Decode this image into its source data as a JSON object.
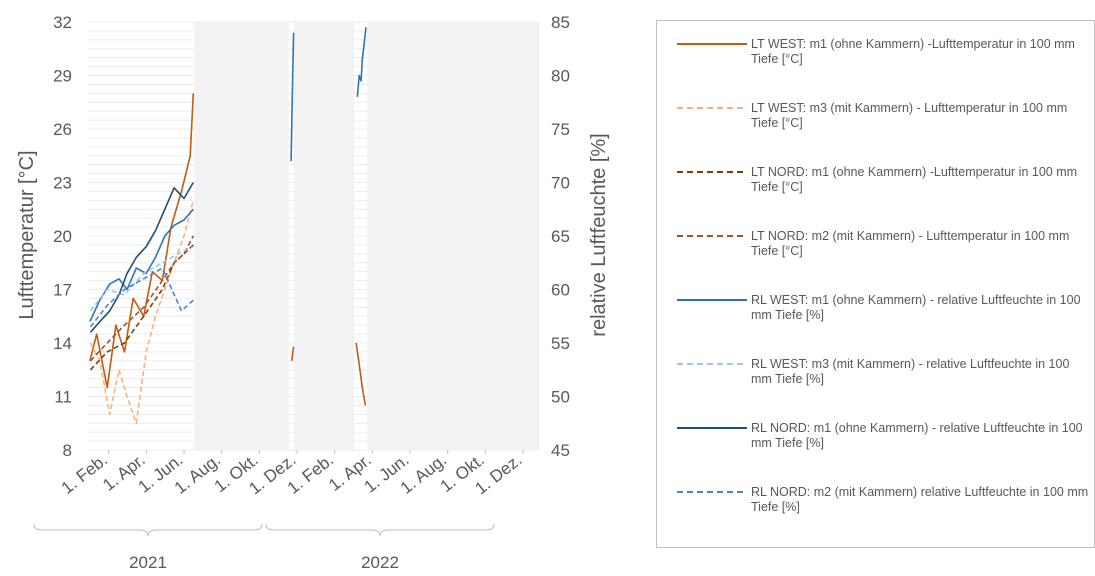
{
  "chart_data": {
    "type": "line",
    "y_left": {
      "label": "Lufttemperatur [°C]",
      "range": [
        8,
        32
      ],
      "ticks": [
        "32",
        "29",
        "26",
        "23",
        "20",
        "17",
        "14",
        "11",
        "8"
      ]
    },
    "y_right": {
      "label": "relative Luftfeuchte [%]",
      "range": [
        45,
        85
      ],
      "ticks": [
        "85",
        "80",
        "75",
        "70",
        "65",
        "60",
        "55",
        "50",
        "45"
      ]
    },
    "x_ticks": [
      "1. Feb.",
      "1. Apr.",
      "1. Jun.",
      "1. Aug.",
      "1. Okt.",
      "1. Dez.",
      "1. Feb.",
      "1. Apr.",
      "1. Jun.",
      "1. Aug.",
      "1. Okt.",
      "1. Dez."
    ],
    "years": [
      "2021",
      "2022"
    ],
    "grid": true,
    "series": [
      {
        "name": "LT WEST: m1 (ohne Kammern) -Lufttemperatur in 100 mm Tiefe [°C]",
        "axis": "left",
        "color": "#c55a11",
        "dash": "solid",
        "segments": [
          {
            "x": [
              "2021-01-04",
              "2021-01-15",
              "2021-02-01",
              "2021-02-15",
              "2021-03-01",
              "2021-03-15",
              "2021-04-01",
              "2021-04-15",
              "2021-05-01",
              "2021-05-15",
              "2021-06-01",
              "2021-06-15",
              "2021-06-20"
            ],
            "y": [
              13.0,
              14.5,
              11.5,
              15.0,
              13.5,
              16.5,
              15.5,
              18.0,
              17.5,
              20.5,
              22.5,
              24.5,
              28.0
            ]
          },
          {
            "x": [
              "2021-11-26",
              "2021-11-29"
            ],
            "y": [
              13.0,
              13.8
            ]
          },
          {
            "x": [
              "2022-03-10",
              "2022-03-15",
              "2022-03-20",
              "2022-03-25"
            ],
            "y": [
              14.0,
              12.8,
              11.5,
              10.5
            ]
          }
        ]
      },
      {
        "name": "LT WEST: m3 (mit Kammern) - Lufttemperatur in 100 mm Tiefe [°C]",
        "axis": "left",
        "color": "#f4b183",
        "dash": "dashed",
        "segments": [
          {
            "x": [
              "2021-01-05",
              "2021-01-20",
              "2021-02-05",
              "2021-02-20",
              "2021-03-05",
              "2021-03-20",
              "2021-04-05",
              "2021-04-20",
              "2021-05-05",
              "2021-05-20",
              "2021-06-05",
              "2021-06-20"
            ],
            "y": [
              14.0,
              13.0,
              10.0,
              12.5,
              11.0,
              9.5,
              13.5,
              15.5,
              17.0,
              18.5,
              20.0,
              22.0
            ]
          }
        ]
      },
      {
        "name": "LT NORD: m1 (ohne Kammern) -Lufttemperatur in 100 mm Tiefe [°C]",
        "axis": "left",
        "color": "#843c0c",
        "dash": "dashed",
        "segments": [
          {
            "x": [
              "2021-01-05",
              "2021-02-01",
              "2021-03-01",
              "2021-04-01",
              "2021-05-01",
              "2021-05-20",
              "2021-06-05",
              "2021-06-20"
            ],
            "y": [
              12.5,
              13.5,
              14.0,
              15.5,
              17.0,
              18.5,
              19.0,
              19.5
            ]
          }
        ]
      },
      {
        "name": "LT NORD: m2 (mit Kammern) - Lufttemperatur in 100 mm Tiefe [°C]",
        "axis": "left",
        "color": "#a0522d",
        "dash": "dashed",
        "segments": [
          {
            "x": [
              "2021-01-05",
              "2021-02-01",
              "2021-03-01",
              "2021-04-01",
              "2021-05-01",
              "2021-05-20",
              "2021-06-05",
              "2021-06-20"
            ],
            "y": [
              13.0,
              14.0,
              15.0,
              16.0,
              17.5,
              18.5,
              19.0,
              20.0
            ]
          }
        ]
      },
      {
        "name": "RL WEST: m1 (ohne Kammern) - relative Luftfeuchte in 100 mm Tiefe [%]",
        "axis": "right",
        "color": "#2e75b6",
        "dash": "solid",
        "segments": [
          {
            "x": [
              "2021-01-04",
              "2021-01-20",
              "2021-02-05",
              "2021-02-20",
              "2021-03-05",
              "2021-03-20",
              "2021-04-05",
              "2021-04-20",
              "2021-05-05",
              "2021-05-20",
              "2021-06-05",
              "2021-06-20"
            ],
            "y": [
              57.0,
              59.0,
              60.5,
              61.0,
              60.0,
              62.0,
              61.5,
              63.0,
              65.0,
              66.0,
              66.5,
              67.5
            ]
          },
          {
            "x": [
              "2021-11-25",
              "2021-11-27",
              "2021-11-29"
            ],
            "y": [
              72.0,
              78.0,
              84.0
            ]
          },
          {
            "x": [
              "2022-03-12",
              "2022-03-15",
              "2022-03-18",
              "2022-03-20",
              "2022-03-23",
              "2022-03-26"
            ],
            "y": [
              78.0,
              80.0,
              79.5,
              81.5,
              83.0,
              84.5
            ]
          }
        ]
      },
      {
        "name": "RL WEST: m3 (mit Kammern) - relative Luftfeuchte in 100 mm Tiefe [%]",
        "axis": "right",
        "color": "#9dc3e6",
        "dash": "dashed",
        "segments": [
          {
            "x": [
              "2021-01-05",
              "2021-02-01",
              "2021-03-01",
              "2021-04-01",
              "2021-05-01",
              "2021-06-01",
              "2021-06-20"
            ],
            "y": [
              58.0,
              60.0,
              59.5,
              61.5,
              62.5,
              63.5,
              64.0
            ]
          }
        ]
      },
      {
        "name": "RL NORD: m1 (ohne Kammern) - relative Luftfeuchte in 100 mm Tiefe [%]",
        "axis": "right",
        "color": "#1f4e79",
        "dash": "solid",
        "segments": [
          {
            "x": [
              "2021-01-05",
              "2021-01-20",
              "2021-02-05",
              "2021-02-20",
              "2021-03-05",
              "2021-03-20",
              "2021-04-05",
              "2021-04-20",
              "2021-05-05",
              "2021-05-20",
              "2021-06-05",
              "2021-06-20"
            ],
            "y": [
              56.0,
              57.0,
              58.0,
              59.5,
              61.5,
              63.0,
              64.0,
              65.5,
              67.5,
              69.5,
              68.5,
              70.0
            ]
          }
        ]
      },
      {
        "name": "RL NORD: m2 (mit Kammern) relative Luftfeuchte in 100 mm Tiefe [%]",
        "axis": "right",
        "color": "#4a86c5",
        "dash": "dashed",
        "segments": [
          {
            "x": [
              "2021-01-05",
              "2021-02-01",
              "2021-03-01",
              "2021-04-01",
              "2021-05-01",
              "2021-06-01",
              "2021-06-20"
            ],
            "y": [
              56.5,
              58.5,
              60.0,
              61.0,
              62.0,
              58.0,
              59.0
            ]
          }
        ]
      }
    ],
    "no_data_ranges": [
      [
        "2021-06-22",
        "2021-11-21"
      ],
      [
        "2021-11-30",
        "2022-03-07"
      ],
      [
        "2022-03-28",
        "2022-12-31"
      ]
    ]
  }
}
